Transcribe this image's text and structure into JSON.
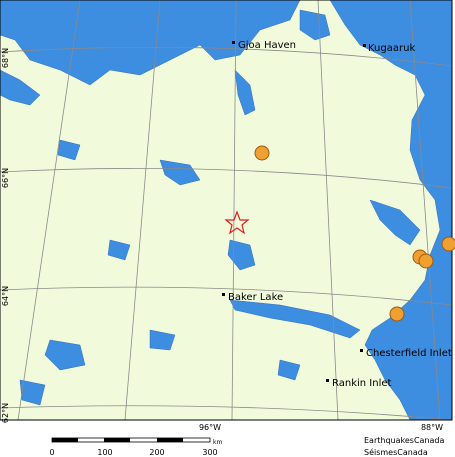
{
  "map": {
    "cities": [
      "Gjoa Haven",
      "Kugaaruk",
      "Baker Lake",
      "Chesterfield Inlet",
      "Rankin Inlet"
    ],
    "latitude_labels": [
      "68°N",
      "66°N",
      "64°N",
      "62°N"
    ],
    "longitude_labels": [
      "96°W",
      "88°W"
    ]
  },
  "scale_bar": {
    "ticks": [
      "0",
      "100",
      "200",
      "300"
    ],
    "unit": "km"
  },
  "credits": [
    "EarthquakesCanada",
    "SéismesCanada"
  ]
}
